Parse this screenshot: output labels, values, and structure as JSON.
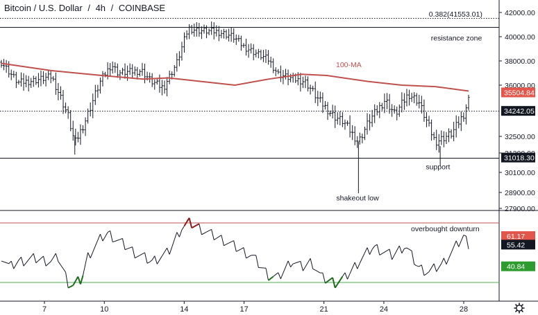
{
  "header": {
    "title": "Bitcoin / U.S. Dollar",
    "interval": "4h",
    "exchange": "COINBASE"
  },
  "colors": {
    "candle": "#131722",
    "ma": "#c0504d",
    "rsi_line": "#131722",
    "rsi_oversold_segment": "#1e6b1e",
    "rsi_overbought_segment": "#8b1a1a",
    "upper_band": "#c0504d",
    "lower_band": "#4caf50",
    "tag_ma": "#e2564b",
    "tag_price": "#131722",
    "tag_rsi_upper": "#e2564b",
    "tag_rsi_value": "#131722",
    "tag_rsi_lower": "#2e9b2e"
  },
  "chart_data": [
    {
      "type": "line",
      "panel": "price",
      "y_ticks": [
        "42000.00",
        "40000.00",
        "38000.00",
        "36000.00",
        "32500.00",
        "31300.00",
        "30100.00",
        "28900.00",
        "27900.00"
      ],
      "x_ticks": [
        "7",
        "10",
        "14",
        "17",
        "21",
        "24",
        "28"
      ],
      "ylim": [
        27900,
        42300
      ],
      "ma_label": "100-MA",
      "ma_series": {
        "name": "100-MA",
        "points": [
          [
            0,
            37800
          ],
          [
            3,
            37200
          ],
          [
            6,
            36800
          ],
          [
            8.5,
            36500
          ],
          [
            10,
            36600
          ],
          [
            12,
            36300
          ],
          [
            14,
            36000
          ],
          [
            16,
            36500
          ],
          [
            18,
            36900
          ],
          [
            19.5,
            36800
          ],
          [
            22,
            36300
          ],
          [
            24,
            36000
          ],
          [
            26,
            35900
          ],
          [
            28,
            35600
          ]
        ]
      },
      "candle_path": [
        [
          0,
          37900
        ],
        [
          1,
          36200
        ],
        [
          2,
          36400
        ],
        [
          3,
          36700
        ],
        [
          4,
          33900
        ],
        [
          4.4,
          32000
        ],
        [
          5,
          33500
        ],
        [
          6,
          36500
        ],
        [
          6.6,
          37700
        ],
        [
          7,
          37000
        ],
        [
          8.4,
          37200
        ],
        [
          9,
          36300
        ],
        [
          9.7,
          35800
        ],
        [
          10.5,
          37800
        ],
        [
          11.2,
          40700
        ],
        [
          11.9,
          40500
        ],
        [
          13,
          40400
        ],
        [
          13.9,
          40000
        ],
        [
          14.5,
          39200
        ],
        [
          16,
          38100
        ],
        [
          16.6,
          36900
        ],
        [
          17.5,
          36500
        ],
        [
          18.2,
          36300
        ],
        [
          19,
          35000
        ],
        [
          19.9,
          33900
        ],
        [
          20.5,
          33500
        ],
        [
          21.4,
          32100
        ],
        [
          22,
          33500
        ],
        [
          23,
          35000
        ],
        [
          23.6,
          34000
        ],
        [
          24.4,
          35400
        ],
        [
          25,
          34900
        ],
        [
          26,
          32100
        ],
        [
          27,
          32700
        ],
        [
          27.7,
          34000
        ],
        [
          28,
          35000
        ]
      ],
      "horizontal_lines": [
        {
          "value": 41553.01,
          "style": "dotted"
        },
        {
          "value": 40800,
          "style": "solid"
        },
        {
          "value": 34242.05,
          "style": "dotted"
        },
        {
          "value": 31018.3,
          "style": "solid"
        }
      ],
      "annotations": [
        {
          "text": "0.382(41553.01)",
          "x": 27.2,
          "y": 41553.01
        },
        {
          "text": "resistance zone",
          "x": 27.2,
          "y": 39700
        },
        {
          "text": "support",
          "x": 26.6,
          "y": 30300
        },
        {
          "text": "shakeout low",
          "x": 21.4,
          "y": 28400
        }
      ],
      "price_tags": [
        {
          "text": "35504.84",
          "value": 35504.84,
          "color_key": "tag_ma"
        },
        {
          "text": "34242.05",
          "value": 34242.05,
          "color_key": "tag_price"
        },
        {
          "text": "31018.30",
          "value": 31018.3,
          "color_key": "tag_price"
        }
      ]
    },
    {
      "type": "line",
      "panel": "rsi",
      "label": "overbought downturn",
      "bands": {
        "upper": 70,
        "lower": 30
      },
      "ylim": [
        25,
        75
      ],
      "series": [
        {
          "points": [
            [
              0,
              48
            ],
            [
              0.5,
              40
            ],
            [
              1,
              44
            ],
            [
              2,
              46
            ],
            [
              3,
              44
            ],
            [
              3.4,
              47
            ],
            [
              4,
              30
            ],
            [
              4.3,
              28
            ],
            [
              4.8,
              32
            ],
            [
              5.2,
              48
            ],
            [
              6,
              60
            ],
            [
              6.4,
              63
            ],
            [
              7,
              58
            ],
            [
              8,
              50
            ],
            [
              9,
              44
            ],
            [
              10,
              50
            ],
            [
              10.8,
              67
            ],
            [
              11.3,
              70
            ],
            [
              11.8,
              67
            ],
            [
              12.6,
              62
            ],
            [
              13.4,
              58
            ],
            [
              14.3,
              52
            ],
            [
              15,
              48
            ],
            [
              16,
              35
            ],
            [
              16.6,
              33
            ],
            [
              17.4,
              45
            ],
            [
              18,
              40
            ],
            [
              18.6,
              44
            ],
            [
              19.2,
              33
            ],
            [
              20,
              30
            ],
            [
              20.6,
              33
            ],
            [
              21.5,
              45
            ],
            [
              22.3,
              54
            ],
            [
              23.4,
              48
            ],
            [
              24.2,
              55
            ],
            [
              25,
              40
            ],
            [
              25.6,
              37
            ],
            [
              26.4,
              42
            ],
            [
              27.1,
              52
            ],
            [
              27.7,
              61
            ],
            [
              28,
              56
            ]
          ]
        }
      ],
      "value_tags": [
        {
          "text": "61.17",
          "value": 61.17,
          "color_key": "tag_rsi_upper"
        },
        {
          "text": "55.42",
          "value": 55.42,
          "color_key": "tag_rsi_value"
        },
        {
          "text": "40.84",
          "value": 40.84,
          "color_key": "tag_rsi_lower"
        }
      ]
    }
  ],
  "footer": {
    "settings_icon": "gear-icon"
  }
}
